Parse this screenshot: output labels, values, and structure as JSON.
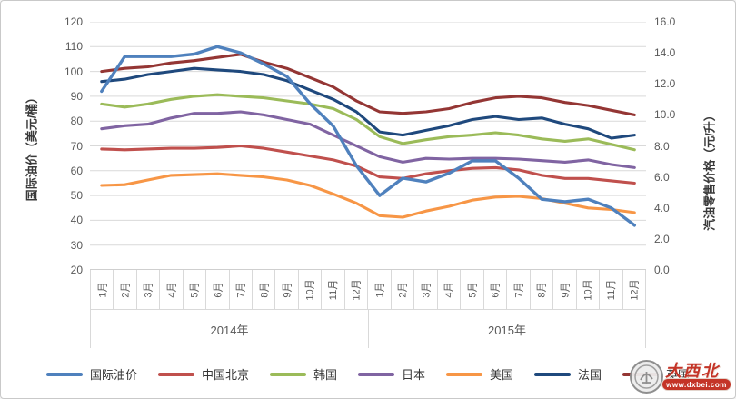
{
  "watermark": {
    "text": "大西北",
    "url": "www.dxbei.com"
  },
  "chart_data": {
    "type": "line",
    "left_axis": {
      "label": "国际油价（美元/桶）",
      "range": [
        20,
        120
      ],
      "tick_step": 10,
      "ticks": [
        "120",
        "110",
        "100",
        "90",
        "80",
        "70",
        "60",
        "50",
        "40",
        "30",
        "20"
      ]
    },
    "right_axis": {
      "label": "汽油零售价格（元/升）",
      "range": [
        0,
        16
      ],
      "tick_step": 2,
      "ticks": [
        "16.0",
        "14.0",
        "12.0",
        "10.0",
        "8.0",
        "6.0",
        "4.0",
        "2.0",
        "0.0"
      ]
    },
    "year_groups": [
      {
        "label": "2014年",
        "months": [
          "1月",
          "2月",
          "3月",
          "4月",
          "5月",
          "6月",
          "7月",
          "8月",
          "9月",
          "10月",
          "11月",
          "12月"
        ]
      },
      {
        "label": "2015年",
        "months": [
          "1月",
          "2月",
          "3月",
          "4月",
          "5月",
          "6月",
          "7月",
          "8月",
          "9月",
          "10月",
          "11月",
          "12月"
        ]
      }
    ],
    "grid": true,
    "legend_position": "bottom",
    "series": [
      {
        "name": "国际油价",
        "color": "#4F81BD",
        "axis": "left",
        "values": [
          92,
          106,
          106,
          106,
          107,
          110,
          107.5,
          103,
          98,
          87,
          78,
          62,
          50,
          57,
          55.5,
          59,
          64,
          64,
          57,
          48.5,
          47.5,
          48.5,
          45,
          38
        ]
      },
      {
        "name": "中国北京",
        "color": "#C0504D",
        "axis": "right",
        "values": [
          7.8,
          7.75,
          7.8,
          7.85,
          7.85,
          7.9,
          8.0,
          7.85,
          7.6,
          7.35,
          7.1,
          6.7,
          6.0,
          5.9,
          6.2,
          6.4,
          6.55,
          6.6,
          6.45,
          6.1,
          5.9,
          5.9,
          5.75,
          5.6
        ]
      },
      {
        "name": "韩国",
        "color": "#9BBB59",
        "axis": "right",
        "values": [
          10.7,
          10.5,
          10.7,
          11.0,
          11.2,
          11.3,
          11.2,
          11.1,
          10.9,
          10.7,
          10.4,
          9.7,
          8.6,
          8.15,
          8.4,
          8.6,
          8.7,
          8.85,
          8.7,
          8.45,
          8.3,
          8.45,
          8.1,
          7.75
        ]
      },
      {
        "name": "日本",
        "color": "#8064A2",
        "axis": "right",
        "values": [
          9.1,
          9.3,
          9.4,
          9.8,
          10.1,
          10.1,
          10.2,
          10.0,
          9.7,
          9.4,
          8.7,
          8.0,
          7.3,
          6.95,
          7.2,
          7.15,
          7.2,
          7.2,
          7.15,
          7.05,
          6.95,
          7.1,
          6.8,
          6.6
        ]
      },
      {
        "name": "美国",
        "color": "#F79646",
        "axis": "right",
        "values": [
          5.45,
          5.5,
          5.8,
          6.1,
          6.15,
          6.2,
          6.1,
          6.0,
          5.8,
          5.45,
          4.9,
          4.3,
          3.5,
          3.4,
          3.8,
          4.1,
          4.5,
          4.7,
          4.75,
          4.6,
          4.3,
          4.0,
          3.9,
          3.7
        ]
      },
      {
        "name": "法国",
        "color": "#1F497D",
        "axis": "right",
        "values": [
          12.15,
          12.3,
          12.6,
          12.8,
          13.0,
          12.9,
          12.8,
          12.6,
          12.2,
          11.6,
          11.0,
          10.2,
          8.9,
          8.7,
          9.0,
          9.3,
          9.7,
          9.9,
          9.7,
          9.8,
          9.4,
          9.1,
          8.5,
          8.7
        ]
      },
      {
        "name": "英国",
        "color": "#943634",
        "axis": "right",
        "values": [
          12.8,
          13.0,
          13.1,
          13.35,
          13.5,
          13.7,
          13.9,
          13.4,
          13.0,
          12.4,
          11.8,
          10.9,
          10.2,
          10.1,
          10.2,
          10.4,
          10.8,
          11.1,
          11.2,
          11.1,
          10.8,
          10.6,
          10.3,
          10.0
        ]
      }
    ],
    "colors": {
      "gridline": "#d9d9d9",
      "axis_line": "#bfbfbf",
      "tick_text": "#595959"
    }
  }
}
